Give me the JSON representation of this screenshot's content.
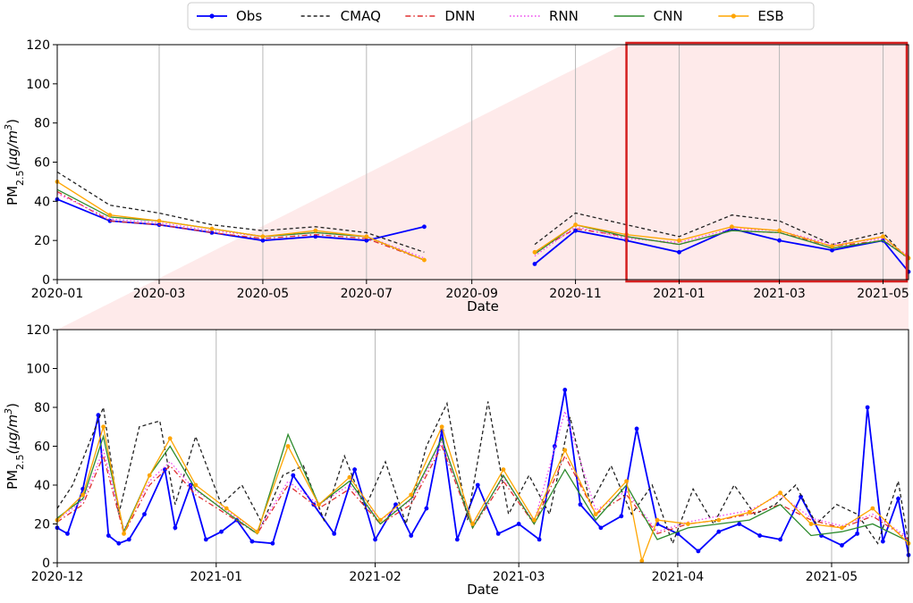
{
  "legend": {
    "entries": [
      {
        "name": "Obs",
        "color": "#0000ff",
        "style": "solid",
        "marker": "dot"
      },
      {
        "name": "CMAQ",
        "color": "#222222",
        "style": "dashed",
        "marker": "none"
      },
      {
        "name": "DNN",
        "color": "#e03030",
        "style": "dashdot",
        "marker": "none"
      },
      {
        "name": "RNN",
        "color": "#ee44ee",
        "style": "dotted",
        "marker": "none"
      },
      {
        "name": "CNN",
        "color": "#2e8b2e",
        "style": "solid",
        "marker": "none"
      },
      {
        "name": "ESB",
        "color": "#ffa500",
        "style": "solid",
        "marker": "dot"
      }
    ]
  },
  "chart_data": [
    {
      "type": "line",
      "xlabel": "Date",
      "ylabel": "PM2.5 (μg/m3)",
      "ylim": [
        0,
        120
      ],
      "yticks": [
        0,
        20,
        40,
        60,
        80,
        100,
        120
      ],
      "xlim": [
        "2020-01-01",
        "2021-05-16"
      ],
      "xticks": [
        "2020-01",
        "2020-03",
        "2020-05",
        "2020-07",
        "2020-09",
        "2020-11",
        "2021-01",
        "2021-03",
        "2021-05"
      ],
      "grid": "vertical",
      "highlight_box": {
        "from": "2020-12-01",
        "to": "2021-05-16",
        "color": "#d42020"
      },
      "gap": [
        "2020-08-05",
        "2020-10-08"
      ],
      "series": [
        {
          "name": "Obs",
          "x": [
            "2020-01-01",
            "2020-02-01",
            "2020-03-01",
            "2020-04-01",
            "2020-05-01",
            "2020-06-01",
            "2020-07-01",
            "2020-08-04",
            "2020-10-08",
            "2020-11-01",
            "2020-12-01",
            "2021-01-01",
            "2021-02-01",
            "2021-03-01",
            "2021-04-01",
            "2021-05-01",
            "2021-05-16"
          ],
          "values": [
            41,
            30,
            28,
            24,
            20,
            22,
            20,
            27,
            8,
            25,
            20,
            14,
            26,
            20,
            15,
            20,
            4
          ]
        },
        {
          "name": "CMAQ",
          "x": [
            "2020-01-01",
            "2020-02-01",
            "2020-03-01",
            "2020-04-01",
            "2020-05-01",
            "2020-06-01",
            "2020-07-01",
            "2020-08-04",
            "2020-10-08",
            "2020-11-01",
            "2020-12-01",
            "2021-01-01",
            "2021-02-01",
            "2021-03-01",
            "2021-04-01",
            "2021-05-01",
            "2021-05-16"
          ],
          "values": [
            55,
            38,
            34,
            28,
            25,
            27,
            24,
            14,
            18,
            34,
            28,
            22,
            33,
            30,
            18,
            24,
            10
          ]
        },
        {
          "name": "DNN",
          "x": [
            "2020-01-01",
            "2020-02-01",
            "2020-03-01",
            "2020-04-01",
            "2020-05-01",
            "2020-06-01",
            "2020-07-01",
            "2020-08-04",
            "2020-10-08",
            "2020-11-01",
            "2020-12-01",
            "2021-01-01",
            "2021-02-01",
            "2021-03-01",
            "2021-04-01",
            "2021-05-01",
            "2021-05-16"
          ],
          "values": [
            45,
            30,
            28,
            24,
            21,
            23,
            21,
            10,
            14,
            26,
            22,
            18,
            25,
            24,
            17,
            20,
            12
          ]
        },
        {
          "name": "RNN",
          "x": [
            "2020-01-01",
            "2020-02-01",
            "2020-03-01",
            "2020-04-01",
            "2020-05-01",
            "2020-06-01",
            "2020-07-01",
            "2020-08-04",
            "2020-10-08",
            "2020-11-01",
            "2020-12-01",
            "2021-01-01",
            "2021-02-01",
            "2021-03-01",
            "2021-04-01",
            "2021-05-01",
            "2021-05-16"
          ],
          "values": [
            44,
            31,
            29,
            25,
            22,
            24,
            22,
            11,
            12,
            27,
            21,
            19,
            26,
            25,
            18,
            21,
            12
          ]
        },
        {
          "name": "CNN",
          "x": [
            "2020-01-01",
            "2020-02-01",
            "2020-03-01",
            "2020-04-01",
            "2020-05-01",
            "2020-06-01",
            "2020-07-01",
            "2020-08-04",
            "2020-10-08",
            "2020-11-01",
            "2020-12-01",
            "2021-01-01",
            "2021-02-01",
            "2021-03-01",
            "2021-04-01",
            "2021-05-01",
            "2021-05-16"
          ],
          "values": [
            46,
            32,
            30,
            26,
            22,
            24,
            22,
            10,
            13,
            28,
            22,
            18,
            25,
            24,
            16,
            20,
            11
          ]
        },
        {
          "name": "ESB",
          "x": [
            "2020-01-01",
            "2020-02-01",
            "2020-03-01",
            "2020-04-01",
            "2020-05-01",
            "2020-06-01",
            "2020-07-01",
            "2020-08-04",
            "2020-10-08",
            "2020-11-01",
            "2020-12-01",
            "2021-01-01",
            "2021-02-01",
            "2021-03-01",
            "2021-04-01",
            "2021-05-01",
            "2021-05-16"
          ],
          "values": [
            50,
            33,
            30,
            26,
            22,
            25,
            22,
            10,
            14,
            28,
            23,
            20,
            27,
            25,
            17,
            22,
            11
          ]
        }
      ]
    },
    {
      "type": "line",
      "xlabel": "Date",
      "ylabel": "PM2.5 (μg/m3)",
      "ylim": [
        0,
        120
      ],
      "yticks": [
        0,
        20,
        40,
        60,
        80,
        100,
        120
      ],
      "xlim": [
        "2020-12-01",
        "2021-05-16"
      ],
      "xticks": [
        "2020-12",
        "2021-01",
        "2021-02",
        "2021-03",
        "2021-04",
        "2021-05"
      ],
      "grid": "vertical",
      "series": [
        {
          "name": "Obs",
          "x": [
            "2020-12-01",
            "2020-12-03",
            "2020-12-06",
            "2020-12-09",
            "2020-12-11",
            "2020-12-13",
            "2020-12-15",
            "2020-12-18",
            "2020-12-22",
            "2020-12-24",
            "2020-12-27",
            "2020-12-30",
            "2021-01-02",
            "2021-01-05",
            "2021-01-08",
            "2021-01-12",
            "2021-01-16",
            "2021-01-20",
            "2021-01-24",
            "2021-01-28",
            "2021-02-01",
            "2021-02-05",
            "2021-02-08",
            "2021-02-11",
            "2021-02-14",
            "2021-02-17",
            "2021-02-21",
            "2021-02-25",
            "2021-03-01",
            "2021-03-05",
            "2021-03-08",
            "2021-03-10",
            "2021-03-13",
            "2021-03-17",
            "2021-03-21",
            "2021-03-24",
            "2021-03-28",
            "2021-04-01",
            "2021-04-05",
            "2021-04-09",
            "2021-04-13",
            "2021-04-17",
            "2021-04-21",
            "2021-04-25",
            "2021-04-29",
            "2021-05-03",
            "2021-05-06",
            "2021-05-08",
            "2021-05-11",
            "2021-05-14",
            "2021-05-16"
          ],
          "values": [
            18,
            15,
            38,
            76,
            14,
            10,
            12,
            25,
            48,
            18,
            40,
            12,
            16,
            22,
            11,
            10,
            45,
            30,
            15,
            48,
            12,
            30,
            14,
            28,
            68,
            12,
            40,
            15,
            20,
            12,
            60,
            89,
            30,
            18,
            24,
            69,
            20,
            15,
            6,
            16,
            20,
            14,
            12,
            34,
            14,
            9,
            15,
            80,
            11,
            33,
            4
          ]
        },
        {
          "name": "CMAQ",
          "x": [
            "2020-12-01",
            "2020-12-04",
            "2020-12-07",
            "2020-12-10",
            "2020-12-13",
            "2020-12-17",
            "2020-12-21",
            "2020-12-24",
            "2020-12-28",
            "2021-01-02",
            "2021-01-06",
            "2021-01-10",
            "2021-01-14",
            "2021-01-18",
            "2021-01-22",
            "2021-01-26",
            "2021-01-30",
            "2021-02-03",
            "2021-02-07",
            "2021-02-11",
            "2021-02-15",
            "2021-02-19",
            "2021-02-23",
            "2021-02-27",
            "2021-03-03",
            "2021-03-07",
            "2021-03-11",
            "2021-03-15",
            "2021-03-19",
            "2021-03-23",
            "2021-03-27",
            "2021-03-31",
            "2021-04-04",
            "2021-04-08",
            "2021-04-12",
            "2021-04-16",
            "2021-04-20",
            "2021-04-24",
            "2021-04-28",
            "2021-05-02",
            "2021-05-06",
            "2021-05-10",
            "2021-05-14",
            "2021-05-16"
          ],
          "values": [
            28,
            40,
            60,
            80,
            25,
            70,
            73,
            30,
            65,
            30,
            40,
            20,
            45,
            50,
            22,
            55,
            28,
            52,
            20,
            60,
            82,
            22,
            83,
            25,
            45,
            25,
            75,
            30,
            50,
            25,
            40,
            10,
            38,
            20,
            40,
            25,
            30,
            40,
            20,
            30,
            25,
            10,
            42,
            10
          ]
        },
        {
          "name": "DNN",
          "x": [
            "2020-12-01",
            "2020-12-06",
            "2020-12-10",
            "2020-12-14",
            "2020-12-19",
            "2020-12-23",
            "2020-12-28",
            "2021-01-03",
            "2021-01-09",
            "2021-01-15",
            "2021-01-21",
            "2021-01-27",
            "2021-02-02",
            "2021-02-08",
            "2021-02-14",
            "2021-02-20",
            "2021-02-26",
            "2021-03-04",
            "2021-03-10",
            "2021-03-16",
            "2021-03-22",
            "2021-03-28",
            "2021-04-03",
            "2021-04-09",
            "2021-04-15",
            "2021-04-21",
            "2021-04-27",
            "2021-05-03",
            "2021-05-09",
            "2021-05-16"
          ],
          "values": [
            21,
            30,
            55,
            15,
            40,
            50,
            35,
            25,
            15,
            40,
            28,
            38,
            20,
            30,
            60,
            18,
            42,
            20,
            55,
            25,
            35,
            15,
            20,
            22,
            25,
            30,
            22,
            18,
            24,
            12
          ]
        },
        {
          "name": "RNN",
          "x": [
            "2020-12-01",
            "2020-12-06",
            "2020-12-10",
            "2020-12-14",
            "2020-12-19",
            "2020-12-23",
            "2020-12-28",
            "2021-01-03",
            "2021-01-09",
            "2021-01-15",
            "2021-01-21",
            "2021-01-27",
            "2021-02-02",
            "2021-02-08",
            "2021-02-14",
            "2021-02-20",
            "2021-02-26",
            "2021-03-04",
            "2021-03-10",
            "2021-03-16",
            "2021-03-22",
            "2021-03-28",
            "2021-04-03",
            "2021-04-09",
            "2021-04-15",
            "2021-04-21",
            "2021-04-27",
            "2021-05-03",
            "2021-05-09",
            "2021-05-16"
          ],
          "values": [
            22,
            32,
            58,
            17,
            42,
            52,
            37,
            27,
            16,
            42,
            30,
            40,
            22,
            32,
            62,
            19,
            44,
            21,
            78,
            27,
            37,
            16,
            21,
            24,
            27,
            35,
            23,
            19,
            25,
            13
          ]
        },
        {
          "name": "CNN",
          "x": [
            "2020-12-01",
            "2020-12-06",
            "2020-12-10",
            "2020-12-14",
            "2020-12-19",
            "2020-12-23",
            "2020-12-28",
            "2021-01-03",
            "2021-01-09",
            "2021-01-15",
            "2021-01-21",
            "2021-01-27",
            "2021-02-02",
            "2021-02-08",
            "2021-02-14",
            "2021-02-20",
            "2021-02-26",
            "2021-03-04",
            "2021-03-10",
            "2021-03-16",
            "2021-03-22",
            "2021-03-28",
            "2021-04-03",
            "2021-04-09",
            "2021-04-15",
            "2021-04-21",
            "2021-04-27",
            "2021-05-03",
            "2021-05-09",
            "2021-05-16"
          ],
          "values": [
            23,
            33,
            65,
            16,
            45,
            60,
            38,
            26,
            15,
            66,
            30,
            42,
            20,
            33,
            64,
            18,
            45,
            20,
            48,
            22,
            40,
            12,
            18,
            20,
            22,
            30,
            14,
            16,
            20,
            11
          ]
        },
        {
          "name": "ESB",
          "x": [
            "2020-12-01",
            "2020-12-06",
            "2020-12-10",
            "2020-12-14",
            "2020-12-19",
            "2020-12-23",
            "2020-12-28",
            "2021-01-03",
            "2021-01-09",
            "2021-01-15",
            "2021-01-21",
            "2021-01-27",
            "2021-02-02",
            "2021-02-08",
            "2021-02-14",
            "2021-02-20",
            "2021-02-26",
            "2021-03-04",
            "2021-03-10",
            "2021-03-16",
            "2021-03-22",
            "2021-03-25",
            "2021-03-28",
            "2021-04-03",
            "2021-04-09",
            "2021-04-15",
            "2021-04-21",
            "2021-04-27",
            "2021-05-03",
            "2021-05-09",
            "2021-05-16"
          ],
          "values": [
            22,
            35,
            70,
            15,
            45,
            64,
            40,
            28,
            16,
            60,
            30,
            44,
            22,
            35,
            70,
            20,
            48,
            22,
            58,
            25,
            42,
            1,
            22,
            20,
            22,
            26,
            36,
            20,
            18,
            28,
            10
          ]
        }
      ]
    }
  ]
}
